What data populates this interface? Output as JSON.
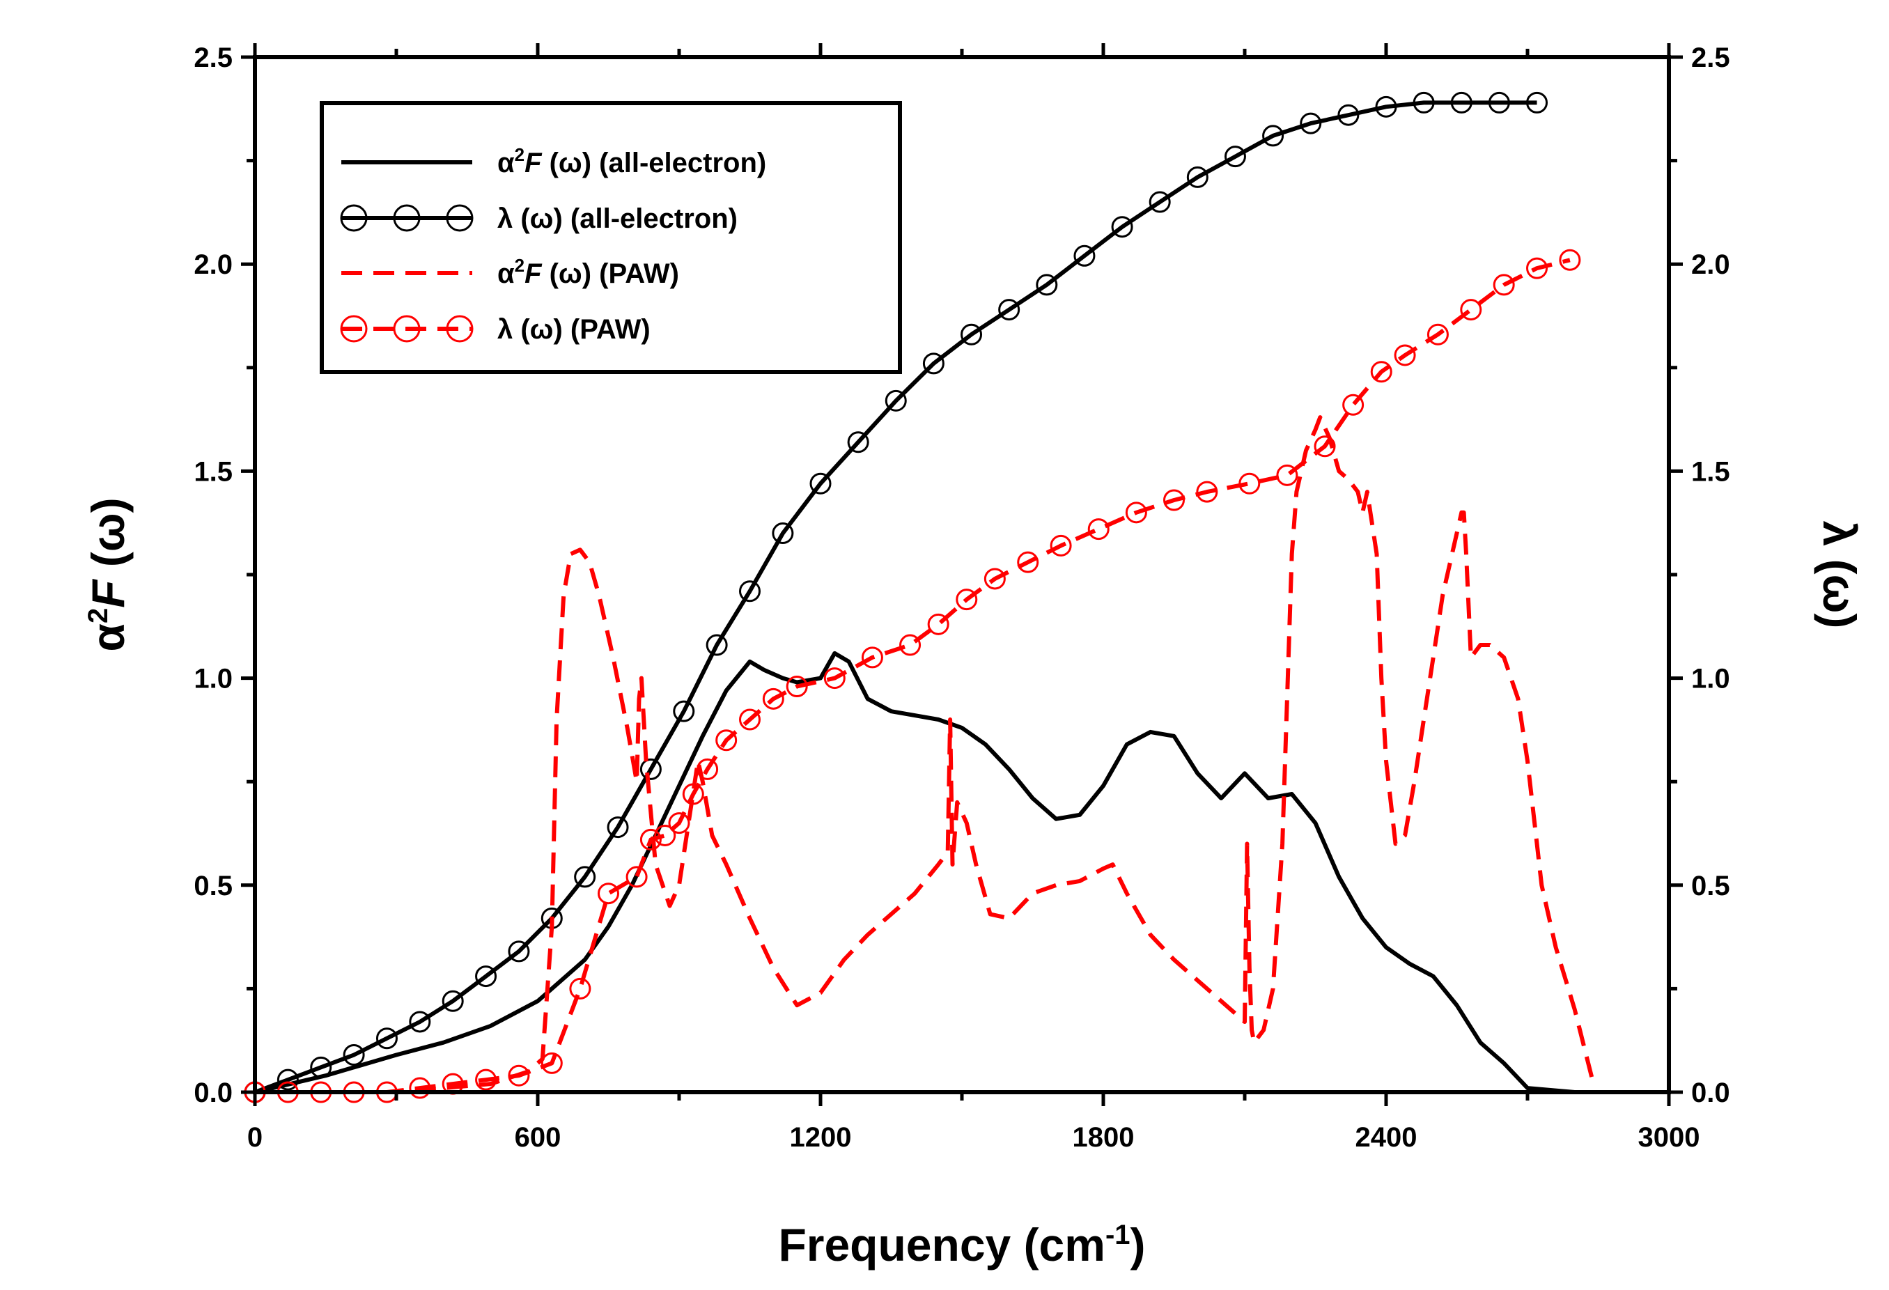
{
  "chart_data": {
    "type": "line",
    "xlabel": "Frequency (cm",
    "xlabel_sup": "-1",
    "xlabel_end": ")",
    "ylabel_left": {
      "pre": "α",
      "sup": "2",
      "italic": "F",
      "post": " (ω)"
    },
    "ylabel_right": "λ (ω)",
    "xlim": [
      0,
      3000
    ],
    "ylim_left": [
      0,
      2.5
    ],
    "ylim_right": [
      0,
      2.5
    ],
    "x_ticks": [
      "0",
      "600",
      "1200",
      "1800",
      "2400",
      "3000"
    ],
    "y_ticks_left": [
      "0.0",
      "0.5",
      "1.0",
      "1.5",
      "2.0",
      "2.5"
    ],
    "y_ticks_right": [
      "0.0",
      "0.5",
      "1.0",
      "1.5",
      "2.0",
      "2.5"
    ],
    "legend_position": "top-left",
    "colors": {
      "all_electron": "#000000",
      "paw": "#ff0000"
    },
    "legend": [
      {
        "key": "a2f_ae",
        "pre": "α",
        "sup": "2",
        "italic": "F",
        "post": " (ω) (all-electron)",
        "style": "solid",
        "color": "#000000",
        "marker": false
      },
      {
        "key": "lambda_ae",
        "pre": "λ (ω) (all-electron)",
        "sup": "",
        "italic": "",
        "post": "",
        "style": "solid",
        "color": "#000000",
        "marker": true
      },
      {
        "key": "a2f_paw",
        "pre": "α",
        "sup": "2",
        "italic": "F",
        "post": " (ω) (PAW)",
        "style": "dashed",
        "color": "#ff0000",
        "marker": false
      },
      {
        "key": "lambda_paw",
        "pre": "λ (ω) (PAW)",
        "sup": "",
        "italic": "",
        "post": "",
        "style": "dashed",
        "color": "#ff0000",
        "marker": true
      }
    ],
    "series": [
      {
        "name": "α2F (ω) (all-electron)",
        "axis": "left",
        "style": "solid",
        "color": "#000000",
        "marker": false,
        "x": [
          0,
          150,
          300,
          400,
          500,
          600,
          700,
          750,
          800,
          850,
          900,
          950,
          1000,
          1050,
          1080,
          1120,
          1150,
          1200,
          1230,
          1260,
          1300,
          1350,
          1400,
          1450,
          1500,
          1550,
          1600,
          1650,
          1700,
          1750,
          1800,
          1850,
          1900,
          1950,
          2000,
          2050,
          2100,
          2150,
          2200,
          2250,
          2300,
          2350,
          2400,
          2450,
          2500,
          2550,
          2600,
          2650,
          2700,
          2800
        ],
        "y": [
          0,
          0.04,
          0.09,
          0.12,
          0.16,
          0.22,
          0.32,
          0.4,
          0.5,
          0.62,
          0.74,
          0.86,
          0.97,
          1.04,
          1.02,
          1.0,
          0.99,
          1.0,
          1.06,
          1.04,
          0.95,
          0.92,
          0.91,
          0.9,
          0.88,
          0.84,
          0.78,
          0.71,
          0.66,
          0.67,
          0.74,
          0.84,
          0.87,
          0.86,
          0.77,
          0.71,
          0.77,
          0.71,
          0.72,
          0.65,
          0.52,
          0.42,
          0.35,
          0.31,
          0.28,
          0.21,
          0.12,
          0.07,
          0.01,
          0.0
        ]
      },
      {
        "name": "λ (ω) (all-electron)",
        "axis": "right",
        "style": "solid",
        "color": "#000000",
        "marker": true,
        "x": [
          0,
          70,
          140,
          210,
          280,
          350,
          420,
          490,
          560,
          630,
          700,
          770,
          840,
          910,
          980,
          1050,
          1120,
          1200,
          1280,
          1360,
          1440,
          1520,
          1600,
          1680,
          1760,
          1840,
          1920,
          2000,
          2080,
          2160,
          2240,
          2320,
          2400,
          2480,
          2560,
          2640,
          2720
        ],
        "y": [
          0,
          0.03,
          0.06,
          0.09,
          0.13,
          0.17,
          0.22,
          0.28,
          0.34,
          0.42,
          0.52,
          0.64,
          0.78,
          0.92,
          1.08,
          1.21,
          1.35,
          1.47,
          1.57,
          1.67,
          1.76,
          1.83,
          1.89,
          1.95,
          2.02,
          2.09,
          2.15,
          2.21,
          2.26,
          2.31,
          2.34,
          2.36,
          2.38,
          2.39,
          2.39,
          2.39,
          2.39
        ]
      },
      {
        "name": "α2F (ω) (PAW)",
        "axis": "left",
        "style": "dashed",
        "color": "#ff0000",
        "marker": false,
        "x": [
          0,
          300,
          400,
          500,
          580,
          610,
          630,
          640,
          655,
          670,
          690,
          710,
          730,
          760,
          790,
          810,
          815,
          820,
          830,
          850,
          880,
          900,
          920,
          940,
          950,
          970,
          1000,
          1050,
          1100,
          1150,
          1200,
          1250,
          1300,
          1350,
          1400,
          1450,
          1470,
          1475,
          1480,
          1490,
          1510,
          1530,
          1560,
          1600,
          1650,
          1700,
          1750,
          1800,
          1820,
          1850,
          1900,
          1950,
          2000,
          2050,
          2080,
          2100,
          2105,
          2110,
          2115,
          2120,
          2140,
          2160,
          2180,
          2200,
          2210,
          2230,
          2250,
          2260,
          2280,
          2300,
          2320,
          2340,
          2350,
          2360,
          2380,
          2390,
          2400,
          2420,
          2440,
          2460,
          2480,
          2500,
          2520,
          2540,
          2560,
          2565,
          2570,
          2580,
          2600,
          2620,
          2650,
          2680,
          2700,
          2730,
          2760,
          2800,
          2840
        ],
        "y": [
          0,
          0.0,
          0.01,
          0.02,
          0.05,
          0.08,
          0.4,
          0.9,
          1.2,
          1.3,
          1.31,
          1.28,
          1.2,
          1.05,
          0.88,
          0.75,
          0.95,
          1.0,
          0.8,
          0.55,
          0.45,
          0.5,
          0.65,
          0.8,
          0.75,
          0.62,
          0.55,
          0.42,
          0.3,
          0.21,
          0.24,
          0.32,
          0.38,
          0.43,
          0.48,
          0.55,
          0.58,
          0.9,
          0.55,
          0.7,
          0.65,
          0.55,
          0.43,
          0.42,
          0.48,
          0.5,
          0.51,
          0.54,
          0.55,
          0.48,
          0.38,
          0.32,
          0.27,
          0.22,
          0.19,
          0.17,
          0.6,
          0.3,
          0.15,
          0.12,
          0.15,
          0.25,
          0.6,
          1.3,
          1.45,
          1.55,
          1.6,
          1.63,
          1.58,
          1.5,
          1.48,
          1.45,
          1.4,
          1.45,
          1.3,
          1.0,
          0.8,
          0.6,
          0.62,
          0.75,
          0.9,
          1.05,
          1.2,
          1.3,
          1.4,
          1.4,
          1.3,
          1.05,
          1.08,
          1.08,
          1.05,
          0.95,
          0.8,
          0.5,
          0.35,
          0.2,
          0.02
        ]
      },
      {
        "name": "λ (ω) (PAW)",
        "axis": "right",
        "style": "dashed",
        "color": "#ff0000",
        "marker": true,
        "x": [
          0,
          70,
          140,
          210,
          280,
          350,
          420,
          490,
          560,
          630,
          690,
          750,
          810,
          840,
          870,
          900,
          930,
          960,
          1000,
          1050,
          1100,
          1150,
          1230,
          1310,
          1390,
          1450,
          1510,
          1570,
          1640,
          1710,
          1790,
          1870,
          1950,
          2020,
          2110,
          2190,
          2270,
          2330,
          2390,
          2440,
          2510,
          2580,
          2650,
          2720,
          2790
        ],
        "y": [
          0,
          0.0,
          0.0,
          0.0,
          0.0,
          0.01,
          0.02,
          0.03,
          0.04,
          0.07,
          0.25,
          0.48,
          0.52,
          0.61,
          0.62,
          0.65,
          0.72,
          0.78,
          0.85,
          0.9,
          0.95,
          0.98,
          1.0,
          1.05,
          1.08,
          1.13,
          1.19,
          1.24,
          1.28,
          1.32,
          1.36,
          1.4,
          1.43,
          1.45,
          1.47,
          1.49,
          1.56,
          1.66,
          1.74,
          1.78,
          1.83,
          1.89,
          1.95,
          1.99,
          2.01
        ]
      }
    ]
  }
}
